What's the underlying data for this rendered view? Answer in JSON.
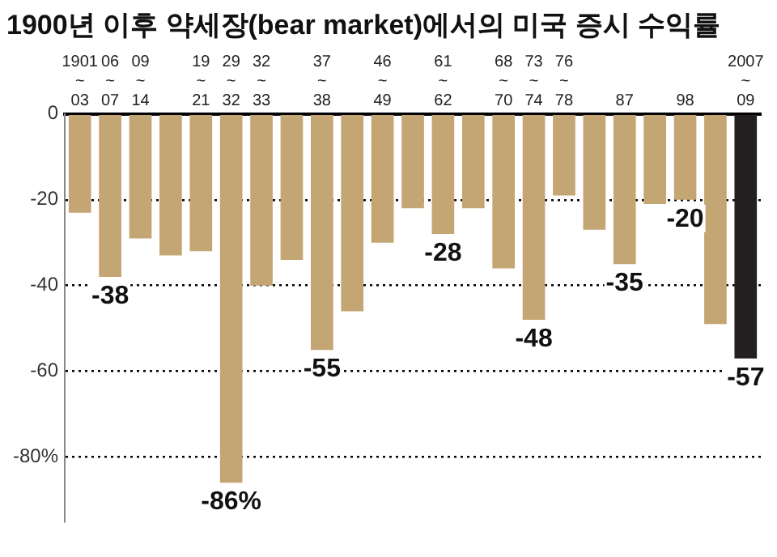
{
  "chart_data": {
    "type": "bar",
    "title": "1900년 이후 약세장(bear market)에서의 미국 증시 수익률",
    "categories": [
      "1901~03",
      "06~07",
      "09~14",
      null,
      "19~21",
      "29~32",
      "32~33",
      null,
      "37~38",
      null,
      "46~49",
      null,
      "61~62",
      null,
      "68~70",
      "73~74",
      "76~78",
      null,
      "87",
      null,
      "98",
      null,
      "2007~09"
    ],
    "values": [
      -23,
      -38,
      -29,
      -33,
      -32,
      -86,
      -40,
      -34,
      -55,
      -46,
      -30,
      -22,
      -28,
      -22,
      -36,
      -48,
      -19,
      -27,
      -35,
      -21,
      -20,
      -49,
      -57
    ],
    "colors": [
      "#c4a574",
      "#c4a574",
      "#c4a574",
      "#c4a574",
      "#c4a574",
      "#c4a574",
      "#c4a574",
      "#c4a574",
      "#c4a574",
      "#c4a574",
      "#c4a574",
      "#c4a574",
      "#c4a574",
      "#c4a574",
      "#c4a574",
      "#c4a574",
      "#c4a574",
      "#c4a574",
      "#c4a574",
      "#c4a574",
      "#c4a574",
      "#c4a574",
      "#231f20"
    ],
    "value_labels": [
      null,
      "-38",
      null,
      null,
      null,
      "-86%",
      null,
      null,
      "-55",
      null,
      null,
      null,
      "-28",
      null,
      null,
      "-48",
      null,
      null,
      "-35",
      null,
      "-20",
      null,
      "-57"
    ],
    "ylim": [
      -95,
      0
    ],
    "yticks": [
      0,
      -20,
      -40,
      -60,
      {
        "value": -80,
        "label": "-80%"
      }
    ],
    "grid": "y",
    "legend": false
  }
}
